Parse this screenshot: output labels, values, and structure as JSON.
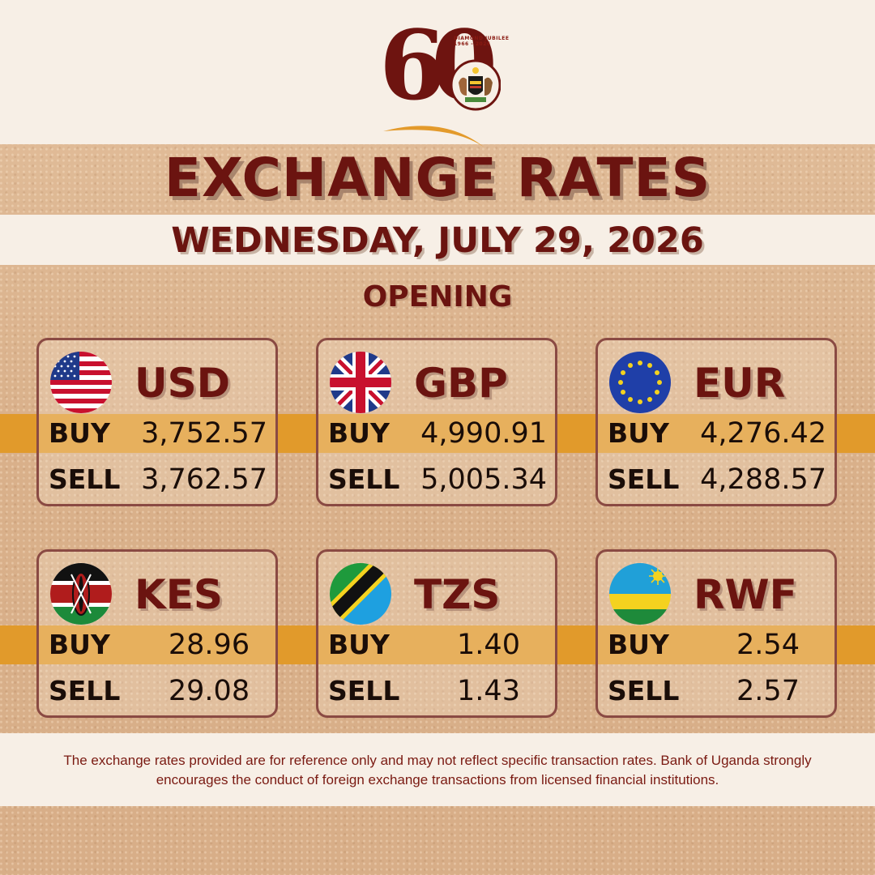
{
  "logo": {
    "number": "60",
    "jubilee_text": "DIAMOND JUBILEE 1966 - 2026"
  },
  "header": {
    "title": "EXCHANGE RATES",
    "date": "WEDNESDAY, JULY 29, 2026",
    "session": "OPENING"
  },
  "labels": {
    "buy": "BUY",
    "sell": "SELL"
  },
  "currencies": [
    {
      "code": "USD",
      "flag": "us-flag-icon",
      "buy": "3,752.57",
      "sell": "3,762.57"
    },
    {
      "code": "GBP",
      "flag": "uk-flag-icon",
      "buy": "4,990.91",
      "sell": "5,005.34"
    },
    {
      "code": "EUR",
      "flag": "eu-flag-icon",
      "buy": "4,276.42",
      "sell": "4,288.57"
    },
    {
      "code": "KES",
      "flag": "kenya-flag-icon",
      "buy": "28.96",
      "sell": "29.08"
    },
    {
      "code": "TZS",
      "flag": "tanzania-flag-icon",
      "buy": "1.40",
      "sell": "1.43"
    },
    {
      "code": "RWF",
      "flag": "rwanda-flag-icon",
      "buy": "2.54",
      "sell": "2.57"
    }
  ],
  "footer": {
    "disclaimer": "The exchange rates provided are for reference only and may not reflect specific transaction rates. Bank of Uganda strongly encourages the conduct of foreign exchange transactions from licensed financial institutions."
  },
  "colors": {
    "brand": "#6b1410",
    "accent_stripe": "#e19a2b",
    "band": "#f7efe6",
    "background": "#dcb48f"
  }
}
